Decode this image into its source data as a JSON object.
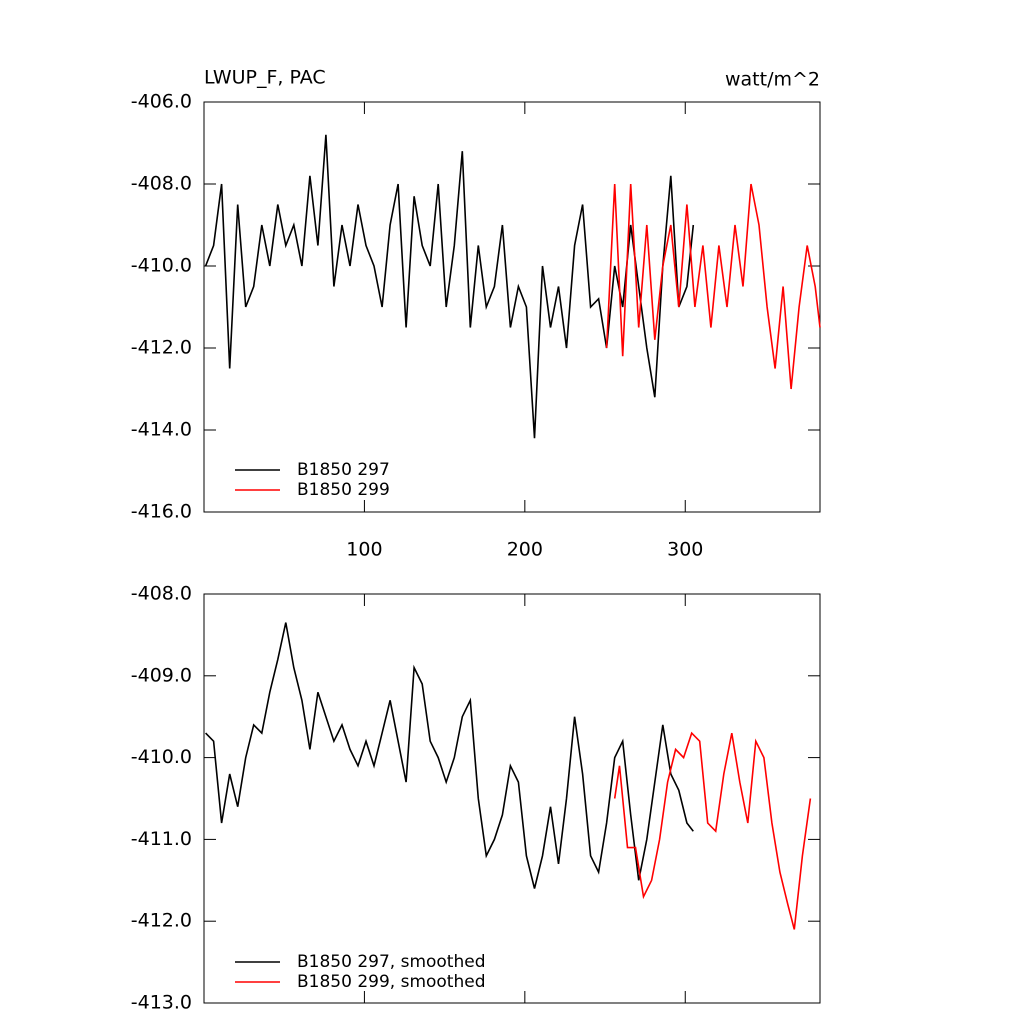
{
  "chart_data": [
    {
      "type": "line",
      "title": "LWUP_F, PAC",
      "units": "watt/m^2",
      "xlim": [
        0,
        384
      ],
      "xticks": [
        100,
        200,
        300
      ],
      "ylim": [
        -416,
        -406
      ],
      "yticks": [
        {
          "value": -406,
          "label": "-406.0"
        },
        {
          "value": -408,
          "label": "-408.0"
        },
        {
          "value": -410,
          "label": "-410.0"
        },
        {
          "value": -412,
          "label": "-412.0"
        },
        {
          "value": -414,
          "label": "-414.0"
        },
        {
          "value": -416,
          "label": "-416.0"
        }
      ],
      "series": [
        {
          "name": "B1850 297",
          "color": "#000000",
          "x": [
            1,
            6,
            11,
            16,
            21,
            26,
            31,
            36,
            41,
            46,
            51,
            56,
            61,
            66,
            71,
            76,
            81,
            86,
            91,
            96,
            101,
            106,
            111,
            116,
            121,
            126,
            131,
            136,
            141,
            146,
            151,
            156,
            161,
            166,
            171,
            176,
            181,
            186,
            191,
            196,
            201,
            206,
            211,
            216,
            221,
            226,
            231,
            236,
            241,
            246,
            251,
            256,
            261,
            266,
            271,
            276,
            281,
            286,
            291,
            296,
            301,
            305
          ],
          "values": [
            -410,
            -409.5,
            -408,
            -412.5,
            -408.5,
            -411,
            -410.5,
            -409,
            -410,
            -408.5,
            -409.5,
            -409,
            -410,
            -407.8,
            -409.5,
            -406.8,
            -410.5,
            -409,
            -410,
            -408.5,
            -409.5,
            -410,
            -411,
            -409,
            -408,
            -411.5,
            -408.3,
            -409.5,
            -410,
            -408,
            -411,
            -409.5,
            -407.2,
            -411.5,
            -409.5,
            -411,
            -410.5,
            -409,
            -411.5,
            -410.5,
            -411,
            -414.2,
            -410,
            -411.5,
            -410.5,
            -412,
            -409.5,
            -408.5,
            -411,
            -410.8,
            -412,
            -410,
            -411,
            -409,
            -410.5,
            -412,
            -413.2,
            -410,
            -407.8,
            -411,
            -410.5,
            -409
          ]
        },
        {
          "name": "B1850 299",
          "color": "#ff0000",
          "x": [
            251,
            256,
            261,
            266,
            271,
            276,
            281,
            286,
            291,
            296,
            301,
            306,
            311,
            316,
            321,
            326,
            331,
            336,
            341,
            346,
            351,
            356,
            361,
            366,
            371,
            376,
            381,
            384
          ],
          "values": [
            -412,
            -408,
            -412.2,
            -408,
            -411.5,
            -409,
            -411.8,
            -410,
            -409,
            -411,
            -408.5,
            -411,
            -409.5,
            -411.5,
            -409.5,
            -411,
            -409,
            -410.5,
            -408,
            -409,
            -411,
            -412.5,
            -410.5,
            -413,
            -411,
            -409.5,
            -410.5,
            -411.5
          ]
        }
      ]
    },
    {
      "type": "line",
      "xlim": [
        0,
        384
      ],
      "ylim": [
        -413,
        -408
      ],
      "yticks": [
        {
          "value": -408,
          "label": "-408.0"
        },
        {
          "value": -409,
          "label": "-409.0"
        },
        {
          "value": -410,
          "label": "-410.0"
        },
        {
          "value": -411,
          "label": "-411.0"
        },
        {
          "value": -412,
          "label": "-412.0"
        },
        {
          "value": -413,
          "label": "-413.0"
        }
      ],
      "series": [
        {
          "name": "B1850 297, smoothed",
          "color": "#000000",
          "x": [
            1,
            6,
            11,
            16,
            21,
            26,
            31,
            36,
            41,
            46,
            51,
            56,
            61,
            66,
            71,
            76,
            81,
            86,
            91,
            96,
            101,
            106,
            111,
            116,
            121,
            126,
            131,
            136,
            141,
            146,
            151,
            156,
            161,
            166,
            171,
            176,
            181,
            186,
            191,
            196,
            201,
            206,
            211,
            216,
            221,
            226,
            231,
            236,
            241,
            246,
            251,
            256,
            261,
            266,
            271,
            276,
            281,
            286,
            291,
            296,
            301,
            305
          ],
          "values": [
            -409.7,
            -409.8,
            -410.8,
            -410.2,
            -410.6,
            -410,
            -409.6,
            -409.7,
            -409.2,
            -408.8,
            -408.35,
            -408.9,
            -409.3,
            -409.9,
            -409.2,
            -409.5,
            -409.8,
            -409.6,
            -409.9,
            -410.1,
            -409.8,
            -410.1,
            -409.7,
            -409.3,
            -409.8,
            -410.3,
            -408.9,
            -409.1,
            -409.8,
            -410,
            -410.3,
            -410,
            -409.5,
            -409.3,
            -410.5,
            -411.2,
            -411,
            -410.7,
            -410.1,
            -410.3,
            -411.2,
            -411.6,
            -411.2,
            -410.6,
            -411.3,
            -410.5,
            -409.5,
            -410.2,
            -411.2,
            -411.4,
            -410.8,
            -410,
            -409.8,
            -410.7,
            -411.5,
            -411,
            -410.3,
            -409.6,
            -410.2,
            -410.4,
            -410.8,
            -410.9
          ]
        },
        {
          "name": "B1850 299, smoothed",
          "color": "#ff0000",
          "x": [
            256,
            259,
            264,
            269,
            274,
            279,
            284,
            289,
            294,
            299,
            304,
            309,
            314,
            319,
            324,
            329,
            334,
            339,
            344,
            349,
            354,
            359,
            364,
            368,
            373,
            378
          ],
          "values": [
            -410.5,
            -410.1,
            -411.1,
            -411.1,
            -411.7,
            -411.5,
            -411,
            -410.3,
            -409.9,
            -410,
            -409.7,
            -409.8,
            -410.8,
            -410.9,
            -410.2,
            -409.7,
            -410.3,
            -410.8,
            -409.8,
            -410,
            -410.8,
            -411.4,
            -411.8,
            -412.1,
            -411.2,
            -410.5
          ]
        }
      ]
    }
  ]
}
